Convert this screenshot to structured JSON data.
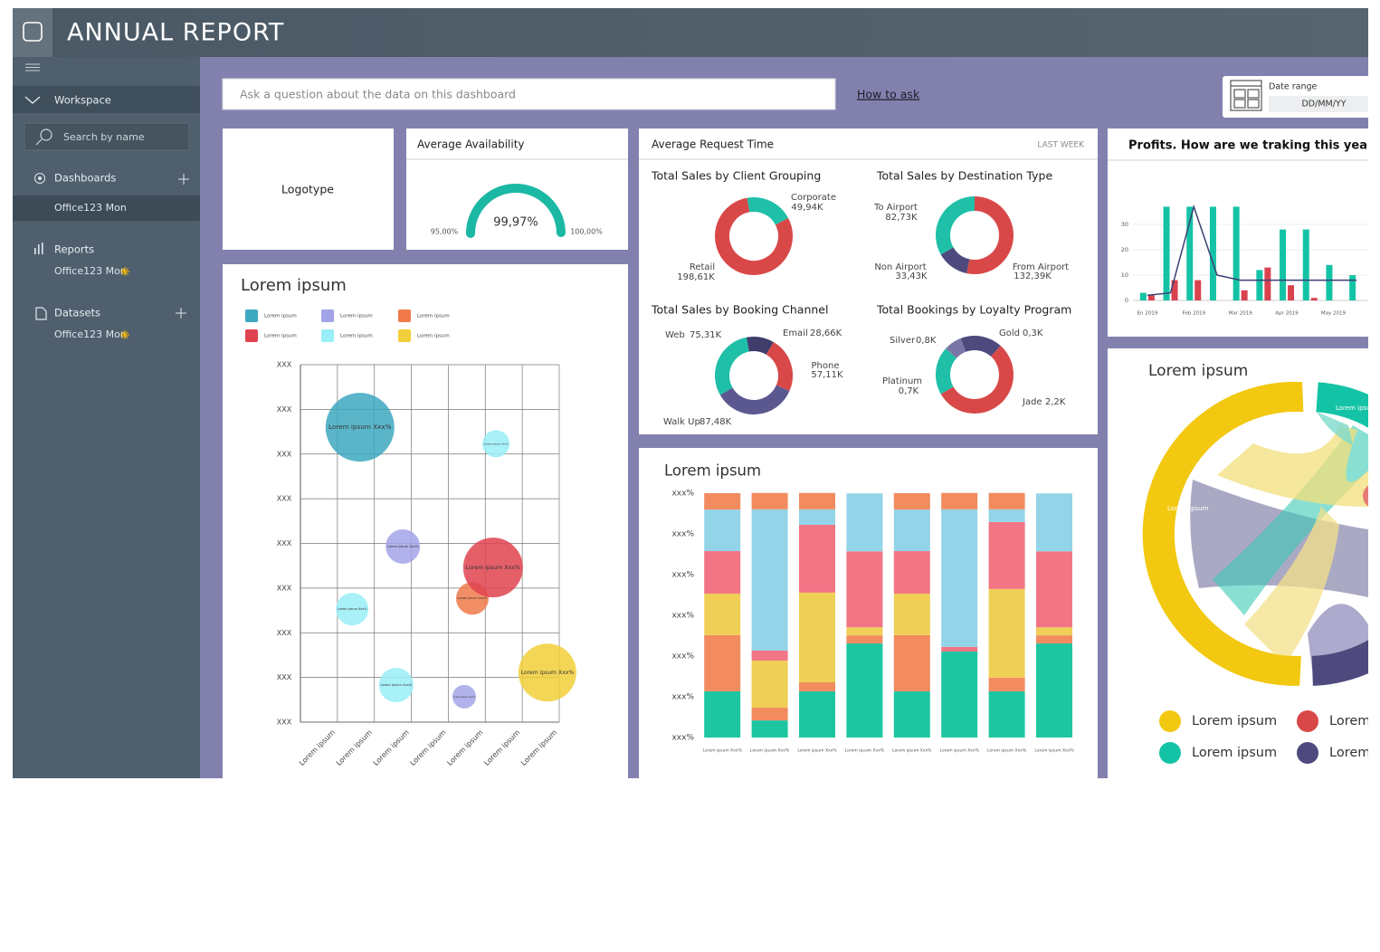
{
  "header": {
    "title": "ANNUAL REPORT"
  },
  "sidebar": {
    "workspace": "Workspace",
    "search": "Search by name",
    "sections": [
      {
        "title": "Dashboards",
        "items": [
          "Office123 Mon"
        ]
      },
      {
        "title": "Reports",
        "items": [
          "Office123 Mon"
        ]
      },
      {
        "title": "Datasets",
        "items": [
          "Office123 Mon"
        ]
      }
    ]
  },
  "toolbar": {
    "search_placeholder": "Ask a question about the data on this dashboard",
    "help_link": "How to ask",
    "date_range": {
      "label": "Date range",
      "value": "DD/MM/YY"
    }
  },
  "logo_card": {
    "text": "Logotype"
  },
  "request_panel": {
    "title": "Average Request Time",
    "period": "LAST WEEK"
  },
  "chart_data": [
    {
      "type": "gauge",
      "title": "Average Availability",
      "value": 99.97,
      "value_label": "99,97%",
      "range": [
        {
          "value": 95,
          "label": "95,00%"
        },
        {
          "value": 100,
          "label": "100,00%"
        }
      ],
      "color": "#1bb8a4"
    },
    {
      "type": "donut",
      "title": "Total Sales by Client Grouping",
      "categories": [
        "Corporate",
        "Retail"
      ],
      "values": [
        49.94,
        198.61
      ],
      "value_labels": [
        "49,94K",
        "198,61K"
      ],
      "colors": [
        "#1fbfa8",
        "#d94848"
      ]
    },
    {
      "type": "donut",
      "title": "Total Sales by Destination Type",
      "categories": [
        "To Airport",
        "Non Airport",
        "From Airport"
      ],
      "values": [
        82.73,
        33.43,
        132.39
      ],
      "value_labels": [
        "82,73K",
        "33,43K",
        "132,39K"
      ],
      "colors": [
        "#1fbfa8",
        "#4e4a7e",
        "#d94848"
      ]
    },
    {
      "type": "donut",
      "title": "Total Sales by Booking Channel",
      "categories": [
        "Web",
        "Email",
        "Phone",
        "Walk Up"
      ],
      "values": [
        75.31,
        28.66,
        57.11,
        87.48
      ],
      "value_labels": [
        "75,31K",
        "28,66K",
        "57,11K",
        "87,48K"
      ],
      "colors": [
        "#1fbfa8",
        "#3f3d6b",
        "#d94848",
        "#5b5890"
      ]
    },
    {
      "type": "donut",
      "title": "Total Bookings by Loyalty Program",
      "categories": [
        "Silver",
        "Gold",
        "Platinum",
        "Jade"
      ],
      "values": [
        0.8,
        0.3,
        0.7,
        2.2
      ],
      "value_labels": [
        "0,8K",
        "0,3K",
        "0,7K",
        "2,2K"
      ],
      "colors": [
        "#1fbfa8",
        "#7a77a8",
        "#4e4a7e",
        "#d94848"
      ]
    },
    {
      "type": "bar",
      "title": "Profits. How are we traking this year?",
      "categories": [
        "En 2019",
        null,
        "Feb 2019",
        null,
        "Mar 2019",
        null,
        "Apr 2019",
        null,
        "May 2019",
        null
      ],
      "series": [
        {
          "color": "#14c3a6",
          "values": [
            3,
            37,
            37,
            37,
            37,
            12,
            28,
            28,
            14,
            10
          ]
        },
        {
          "color": "#d9434f",
          "values": [
            2,
            8,
            8,
            0,
            4,
            13,
            6,
            1,
            0,
            0
          ]
        },
        {
          "type": "line",
          "color": "#3b3f75",
          "values": [
            2,
            3,
            37,
            10,
            8,
            8,
            8,
            8,
            8,
            8
          ]
        }
      ],
      "ylim": [
        0,
        40
      ],
      "yticks": [
        0,
        10,
        20,
        30
      ]
    },
    {
      "type": "scatter",
      "title": "Lorem ipsum",
      "series": [
        {
          "name": "Lorem ipsum",
          "color": "#3ea8c0",
          "x": [
            1.61
          ],
          "y": [
            6.6
          ],
          "sizes": [
            38
          ],
          "labels": [
            "Lorem ipsum Xxx%"
          ]
        },
        {
          "name": "Lorem ipsum",
          "color": "#a3a3e8",
          "x": [
            2.77,
            4.43
          ],
          "y": [
            3.93,
            0.57
          ],
          "sizes": [
            19,
            13
          ],
          "labels": [
            "Lorem ipsum Xxx%",
            "Lorem ipsum Xxx%"
          ]
        },
        {
          "name": "Lorem ipsum",
          "color": "#f07a4a",
          "x": [
            4.65
          ],
          "y": [
            2.77
          ],
          "sizes": [
            18
          ],
          "labels": [
            "Lorem ipsum Xxx%"
          ]
        },
        {
          "name": "Lorem ipsum",
          "color": "#e0434f",
          "x": [
            5.21
          ],
          "y": [
            3.46
          ],
          "sizes": [
            33
          ],
          "labels": [
            "Lorem ipsum Xxx%"
          ]
        },
        {
          "name": "Lorem ipsum",
          "color": "#99eef7",
          "x": [
            5.29,
            1.4,
            2.59
          ],
          "y": [
            6.23,
            2.53,
            0.83
          ],
          "sizes": [
            15,
            18,
            19
          ],
          "labels": [
            "Lorem ipsum Xxx%",
            "Lorem ipsum Xxx%",
            "Lorem ipsum Xxx%"
          ]
        },
        {
          "name": "Lorem ipsum",
          "color": "#f2cf3a",
          "x": [
            6.68
          ],
          "y": [
            1.11
          ],
          "sizes": [
            32
          ],
          "labels": [
            "Lorem ipsum Xxx%"
          ]
        }
      ],
      "xlim": [
        0,
        7
      ],
      "ylim": [
        0,
        8
      ],
      "xticks": [
        {
          "value": 1,
          "label": "Lorem ipsum"
        },
        {
          "value": 2,
          "label": "Lorem ipsum"
        },
        {
          "value": 3,
          "label": "Lorem ipsum"
        },
        {
          "value": 4,
          "label": "Lorem ipsum"
        },
        {
          "value": 5,
          "label": "Lorem ipsum"
        },
        {
          "value": 6,
          "label": "Lorem ipsum"
        },
        {
          "value": 7,
          "label": "Lorem ipsum"
        }
      ],
      "yticks": [
        {
          "value": 0,
          "label": "XXX"
        },
        {
          "value": 1,
          "label": "XXX"
        },
        {
          "value": 2,
          "label": "XXX"
        },
        {
          "value": 3,
          "label": "XXX"
        },
        {
          "value": 4,
          "label": "XXX"
        },
        {
          "value": 5,
          "label": "XXX"
        },
        {
          "value": 6,
          "label": "XXX"
        },
        {
          "value": 7,
          "label": "XXX"
        },
        {
          "value": 8,
          "label": "XXX"
        }
      ],
      "grid": true
    },
    {
      "type": "stacked_bar",
      "title": "Lorem ipsum",
      "categories": [
        "Lorem ipsum Xxx%",
        "Lorem ipsum Xxx%",
        "Lorem ipsum Xxx%",
        "Lorem ipsum Xxx%",
        "Lorem ipsum Xxx%",
        "Lorem ipsum Xxx%",
        "Lorem ipsum Xxx%",
        "Lorem ipsum Xxx%"
      ],
      "series": [
        {
          "color": "#1dc6a1",
          "values": [
            18.9,
            7.0,
            18.9,
            38.5,
            18.9,
            35.2,
            18.9,
            38.5
          ]
        },
        {
          "color": "#f28b5e",
          "values": [
            23.0,
            5.2,
            3.7,
            3.3,
            23.0,
            0,
            5.6,
            3.3
          ]
        },
        {
          "color": "#efcf56",
          "values": [
            17.0,
            19.3,
            36.7,
            3.3,
            17.0,
            0,
            36.3,
            3.3
          ]
        },
        {
          "color": "#f27585",
          "values": [
            17.4,
            4.1,
            27.8,
            31.1,
            17.4,
            1.9,
            27.4,
            31.1
          ]
        },
        {
          "color": "#93d4e8",
          "values": [
            17.0,
            57.8,
            6.3,
            23.7,
            17.0,
            56.3,
            5.2,
            23.7
          ]
        },
        {
          "color": "#f28b5e",
          "values": [
            6.7,
            6.7,
            6.7,
            0,
            6.7,
            6.7,
            6.7,
            0
          ]
        }
      ],
      "ylim": [
        0,
        100
      ],
      "yticks": [
        {
          "value": 0,
          "label": "xxx%"
        },
        {
          "value": 16.7,
          "label": "xxx%"
        },
        {
          "value": 33.3,
          "label": "xxx%"
        },
        {
          "value": 50,
          "label": "xxx%"
        },
        {
          "value": 66.7,
          "label": "xxx%"
        },
        {
          "value": 83.3,
          "label": "xxx%"
        },
        {
          "value": 100,
          "label": "xxx%"
        }
      ]
    }
  ],
  "chord": {
    "title": "Lorem ipsum",
    "arc_labels": [
      "Lorem ipsum",
      "Lorem ipsum"
    ],
    "legend": [
      {
        "label": "Lorem ipsum",
        "color": "#f2c811"
      },
      {
        "label": "Lorem ipsum",
        "color": "#d94848"
      },
      {
        "label": "Lorem ipsum",
        "color": "#14c3a6"
      },
      {
        "label": "Lorem ipsum",
        "color": "#4e4a7e"
      }
    ]
  }
}
